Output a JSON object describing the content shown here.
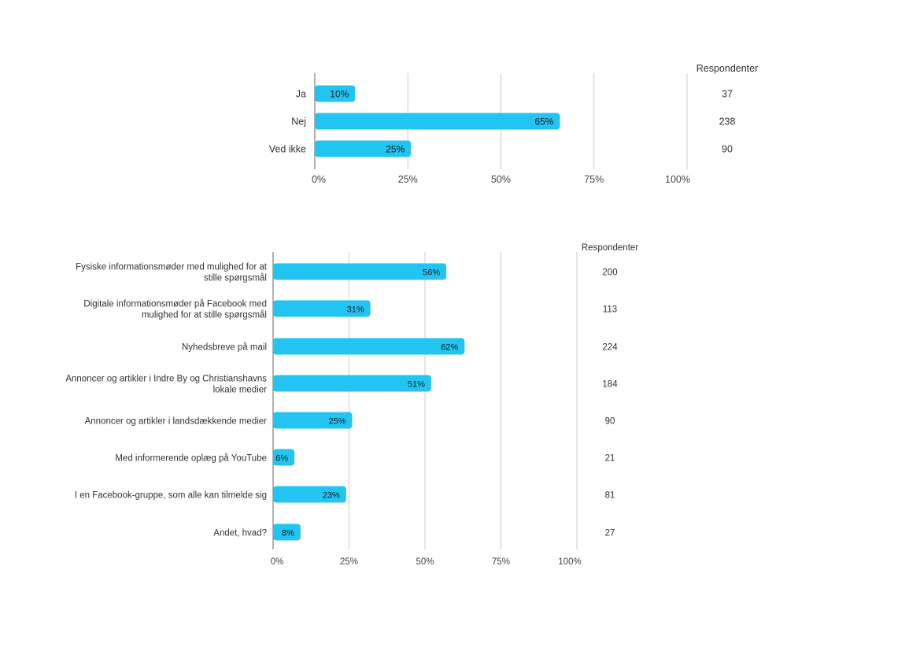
{
  "chart_data": [
    {
      "type": "bar",
      "orientation": "horizontal",
      "categories": [
        "Ja",
        "Nej",
        "Ved ikke"
      ],
      "values": [
        10,
        65,
        25
      ],
      "value_labels": [
        "10%",
        "65%",
        "25%"
      ],
      "respondents_header": "Respondenter",
      "respondents": [
        "37",
        "238",
        "90"
      ],
      "ticks": [
        "0%",
        "25%",
        "50%",
        "75%",
        "100%"
      ],
      "xlim": [
        0,
        100
      ],
      "bar_color": "#22c4f2",
      "grid": true
    },
    {
      "type": "bar",
      "orientation": "horizontal",
      "categories": [
        [
          "Fysiske informationsmøder med mulighed for at",
          "stille spørgsmål"
        ],
        [
          "Digitale informationsmøder på Facebook med",
          "mulighed for at stille spørgsmål"
        ],
        [
          "Nyhedsbreve på mail"
        ],
        [
          "Annoncer og artikler i Indre By og Christianshavns",
          "lokale medier"
        ],
        [
          "Annoncer og artikler i landsdækkende medier"
        ],
        [
          "Med informerende oplæg på YouTube"
        ],
        [
          "I en Facebook-gruppe, som alle kan tilmelde sig"
        ],
        [
          "Andet, hvad?"
        ]
      ],
      "values": [
        56,
        31,
        62,
        51,
        25,
        6,
        23,
        8
      ],
      "value_labels": [
        "56%",
        "31%",
        "62%",
        "51%",
        "25%",
        "6%",
        "23%",
        "8%"
      ],
      "respondents_header": "Respondenter",
      "respondents": [
        "200",
        "113",
        "224",
        "184",
        "90",
        "21",
        "81",
        "27"
      ],
      "ticks": [
        "0%",
        "25%",
        "50%",
        "75%",
        "100%"
      ],
      "xlim": [
        0,
        100
      ],
      "bar_color": "#22c4f2",
      "grid": true
    }
  ]
}
